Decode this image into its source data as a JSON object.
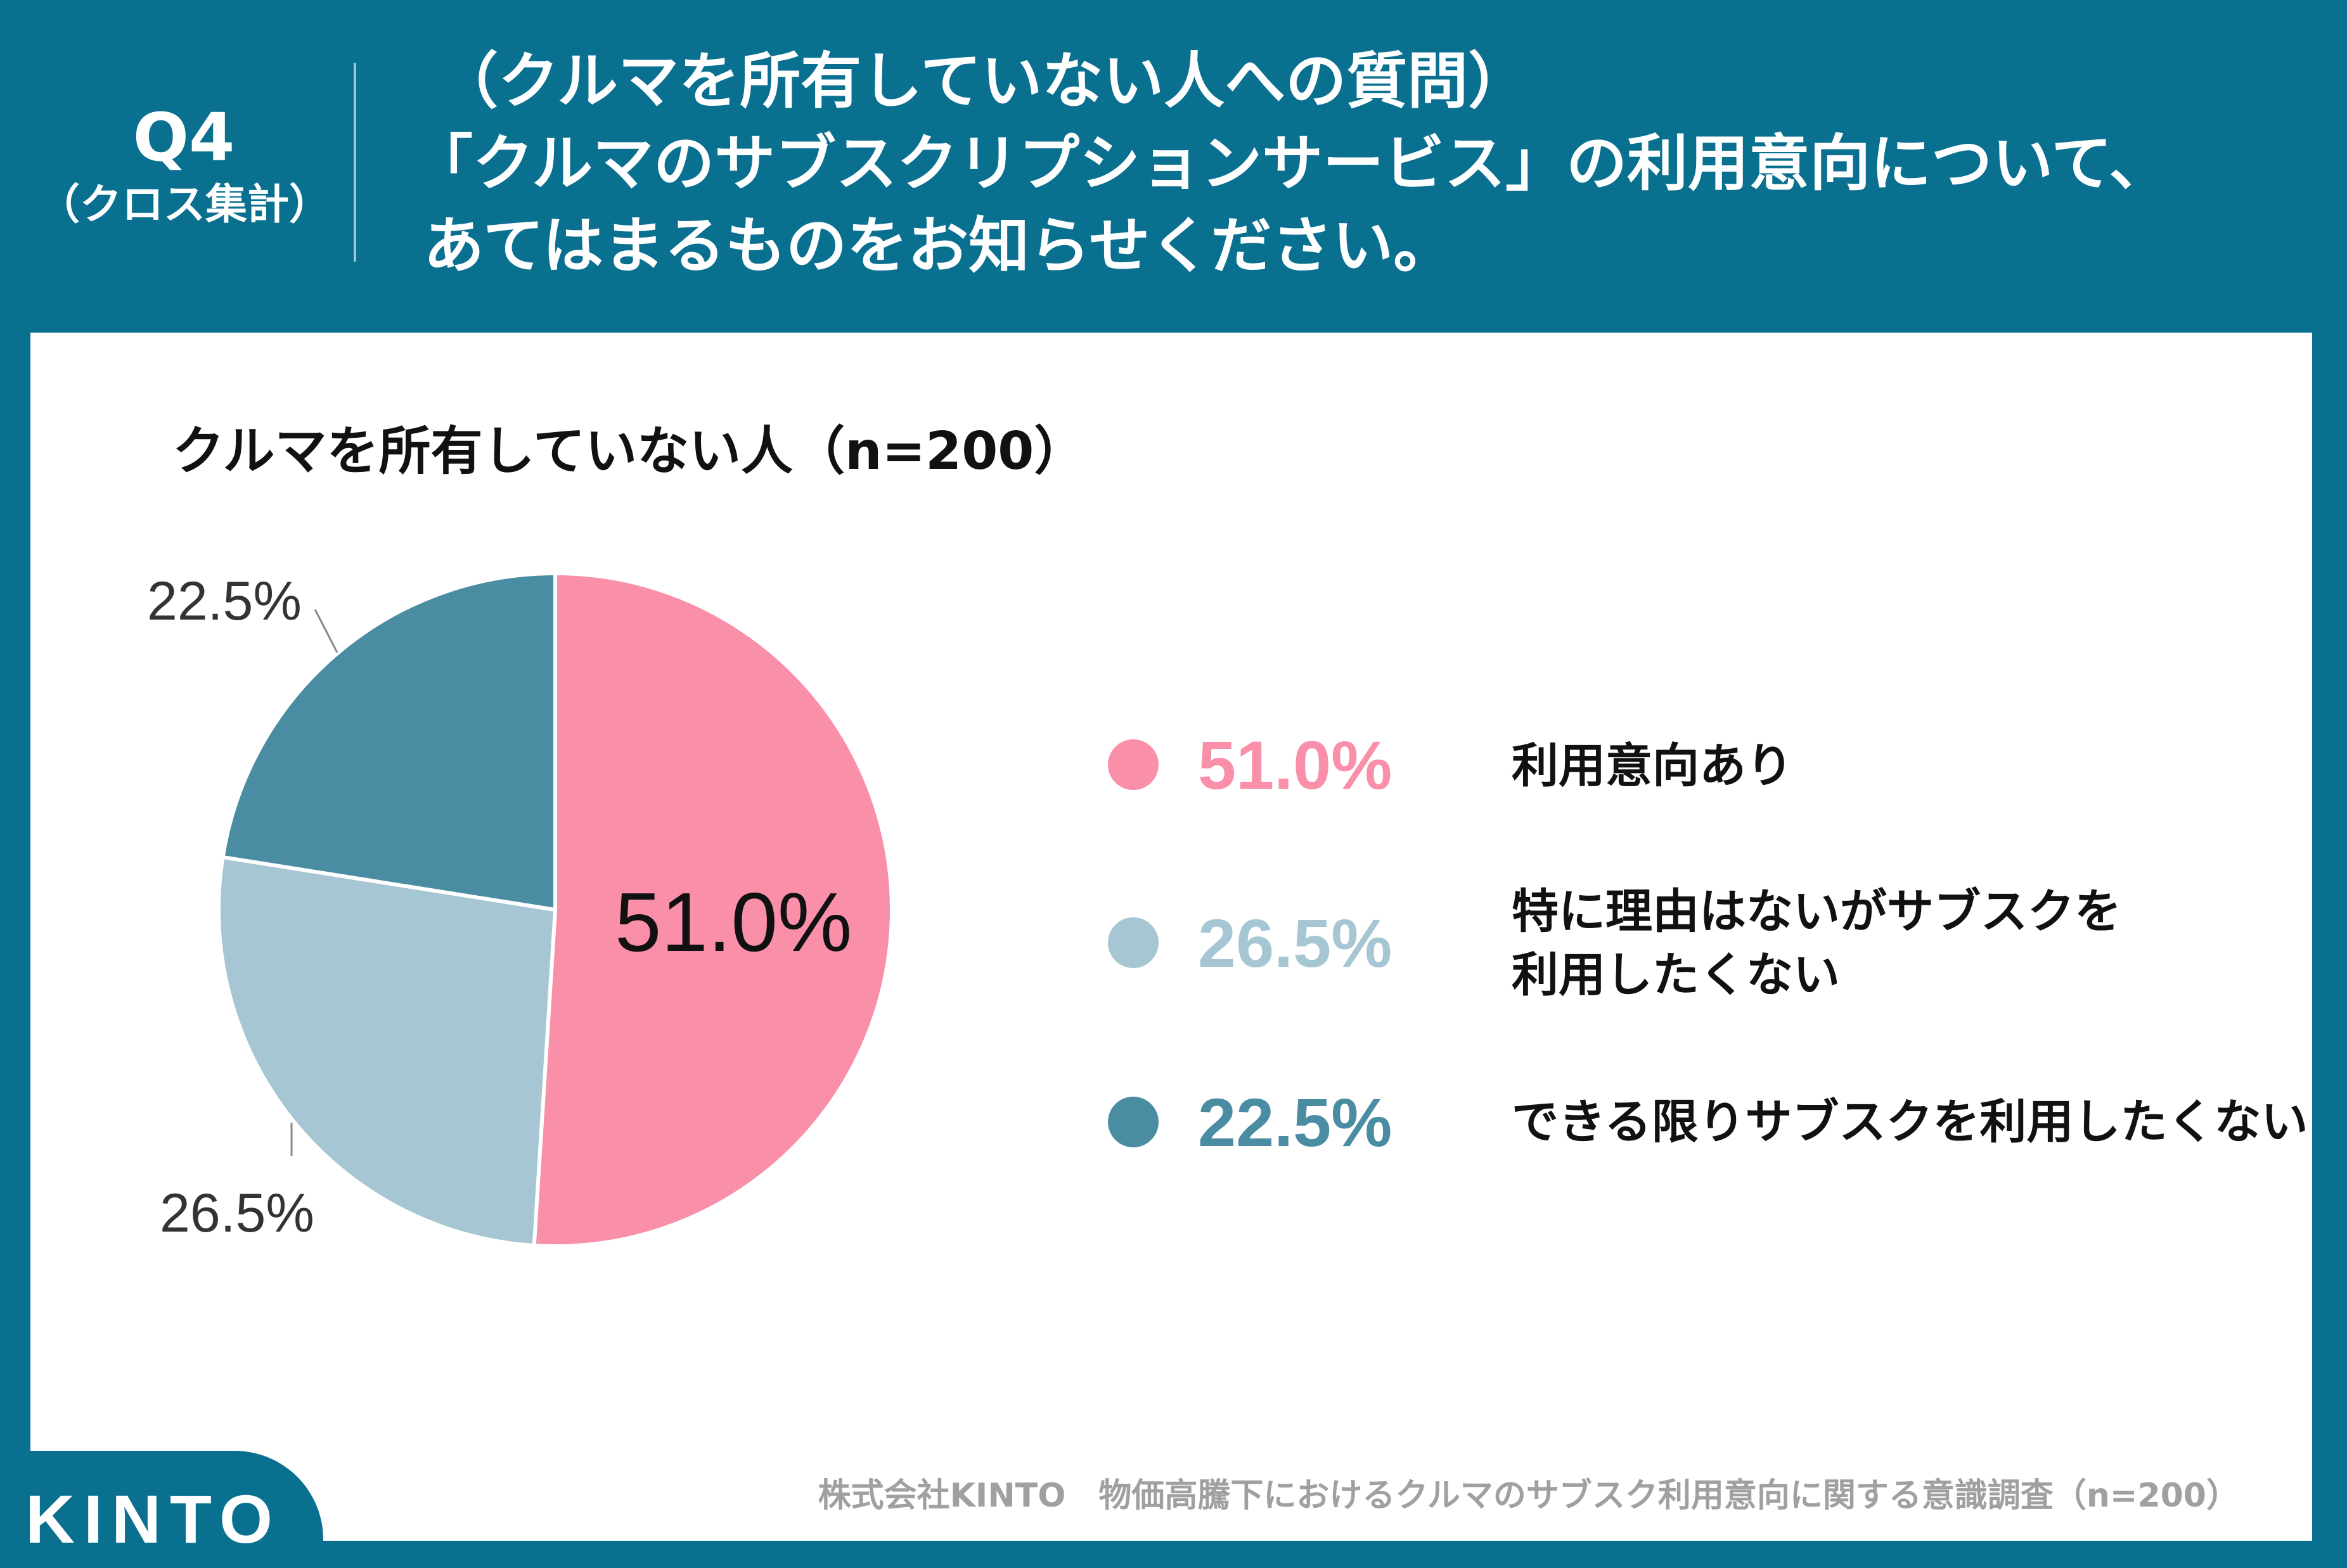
{
  "header": {
    "q_number": "Q4",
    "q_sub": "（クロス集計）",
    "lines": [
      "（クルマを所有していない人への質問）",
      "「クルマのサブスクリプションサービス」の利用意向について、",
      "あてはまるものをお知らせください。"
    ]
  },
  "colors": {
    "header_bg": "#0a7090",
    "pink": "#f98fa8",
    "light_blue": "#a5c6d2",
    "teal": "#4a8da3"
  },
  "chart_data": {
    "type": "pie",
    "title": "クルマを所有していない人（n=200）",
    "start": "top",
    "direction": "clockwise",
    "slices": [
      {
        "label": "利用意向あり",
        "value": 51.0,
        "display": "51.0%",
        "color": "#f98fa8"
      },
      {
        "label": "特に理由はないがサブスクを\n利用したくない",
        "label_lines": [
          "特に理由はないがサブスクを",
          "利用したくない"
        ],
        "value": 26.5,
        "display": "26.5%",
        "color": "#a5c6d2"
      },
      {
        "label": "できる限りサブスクを利用したくない",
        "value": 22.5,
        "display": "22.5%",
        "color": "#4a8da3"
      }
    ],
    "legend": "right"
  },
  "footer": "株式会社KINTO　物価高騰下におけるクルマのサブスク利用意向に関する意識調査（n=200）",
  "logo": "KINTO"
}
